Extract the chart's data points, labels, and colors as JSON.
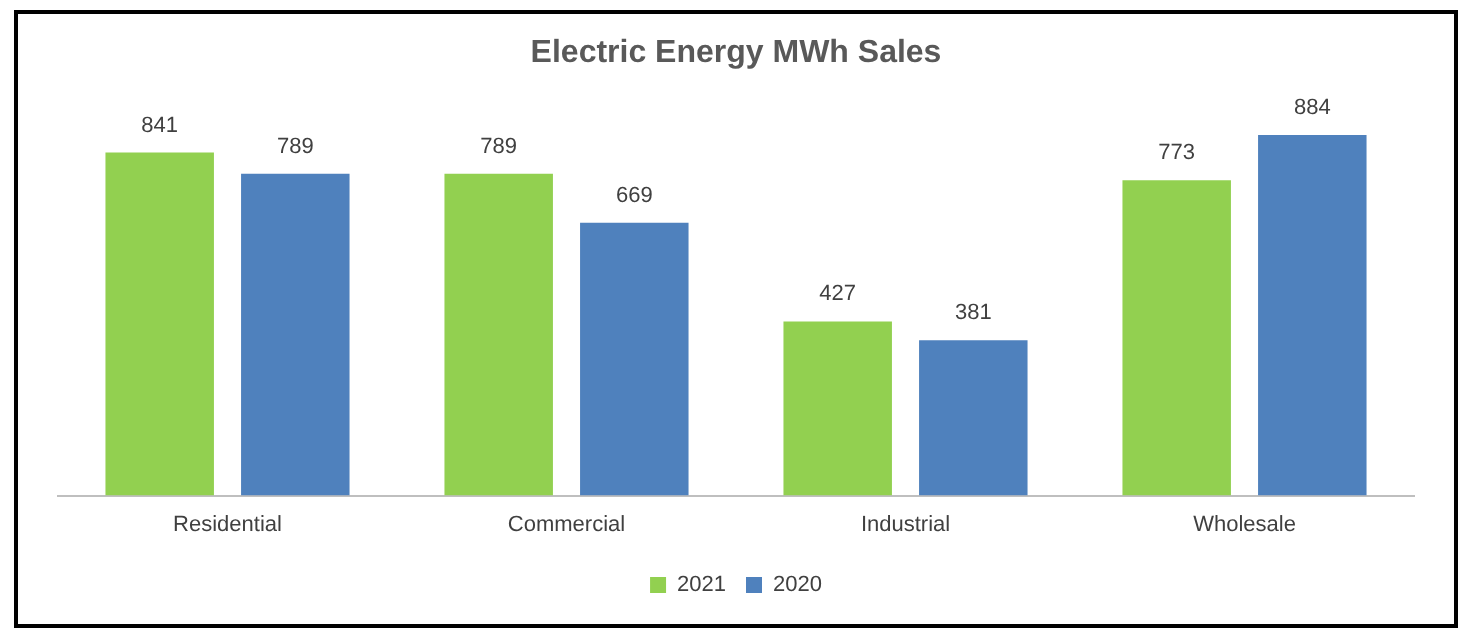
{
  "chart_data": {
    "type": "bar",
    "title": "Electric Energy MWh Sales",
    "categories": [
      "Residential",
      "Commercial",
      "Industrial",
      "Wholesale"
    ],
    "series": [
      {
        "name": "2021",
        "color": "#92d050",
        "values": [
          841,
          789,
          427,
          773
        ]
      },
      {
        "name": "2020",
        "color": "#4f81bd",
        "values": [
          789,
          669,
          381,
          884
        ]
      }
    ],
    "data_labels": true,
    "legend": "bottom",
    "grid": false,
    "tick_labels": "x"
  }
}
